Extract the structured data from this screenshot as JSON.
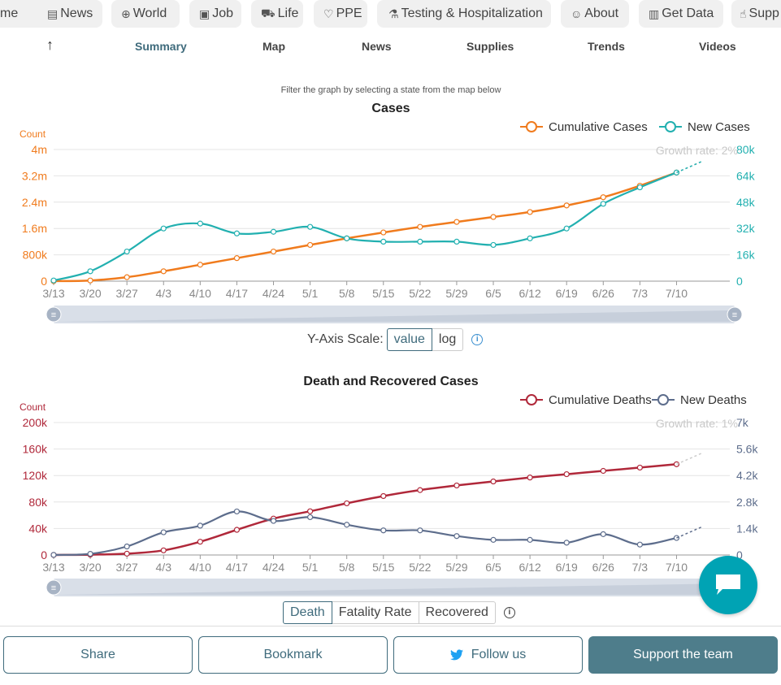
{
  "nav": {
    "pills": [
      {
        "label": "me",
        "icon": "home-icon"
      },
      {
        "label": "News",
        "icon": "newspaper-icon"
      },
      {
        "label": "World",
        "icon": "globe-icon"
      },
      {
        "label": "Job",
        "icon": "job-icon"
      },
      {
        "label": "Life",
        "icon": "cart-icon"
      },
      {
        "label": "PPE",
        "icon": "heart-icon"
      },
      {
        "label": "Testing & Hospitalization",
        "icon": "flask-icon"
      },
      {
        "label": "About",
        "icon": "users-icon"
      },
      {
        "label": "Get Data",
        "icon": "document-icon"
      },
      {
        "label": "Supp",
        "icon": "thumbs-up-icon"
      }
    ],
    "tabs": [
      "Summary",
      "Map",
      "News",
      "Supplies",
      "Trends",
      "Videos"
    ],
    "active_tab": "Summary"
  },
  "filter_hint": "Filter the graph by selecting a state from the map below",
  "scale_selector": {
    "label": "Y-Axis Scale:",
    "options": [
      "value",
      "log"
    ],
    "active": "value"
  },
  "death_selector": {
    "options": [
      "Death",
      "Fatality Rate",
      "Recovered"
    ],
    "active": "Death"
  },
  "buttons": {
    "share": "Share",
    "bookmark": "Bookmark",
    "follow": "Follow us",
    "support": "Support the team"
  },
  "colors": {
    "orange": "#f07b1d",
    "teal": "#22b0b0",
    "red": "#b0283a",
    "slate": "#5d6d8c",
    "accent": "#3f6b7c",
    "chat": "#00a3b4"
  },
  "chart_data": [
    {
      "type": "line",
      "title": "Cases",
      "ylabel_left": "Count",
      "x_ticks": [
        "3/13",
        "3/20",
        "3/27",
        "4/3",
        "4/10",
        "4/17",
        "4/24",
        "5/1",
        "5/8",
        "5/15",
        "5/22",
        "5/29",
        "6/5",
        "6/12",
        "6/19",
        "6/26",
        "7/3",
        "7/10"
      ],
      "y_left_ticks": [
        "0",
        "800k",
        "1.6m",
        "2.4m",
        "3.2m",
        "4m"
      ],
      "y_right_ticks": [
        "0",
        "16k",
        "32k",
        "48k",
        "64k",
        "80k"
      ],
      "ylim_left": [
        0,
        4000000
      ],
      "ylim_right": [
        0,
        80000
      ],
      "annotation": "Growth rate: 2%",
      "legend": [
        "Cumulative Cases",
        "New Cases"
      ],
      "series": [
        {
          "name": "Cumulative Cases",
          "axis": "left",
          "values": [
            2000,
            20000,
            120000,
            300000,
            500000,
            700000,
            900000,
            1100000,
            1300000,
            1480000,
            1650000,
            1800000,
            1950000,
            2100000,
            2300000,
            2550000,
            2900000,
            3300000
          ]
        },
        {
          "name": "New Cases",
          "axis": "right",
          "values": [
            400,
            6000,
            18000,
            32000,
            35000,
            29000,
            30000,
            33000,
            26000,
            24000,
            24000,
            24000,
            22000,
            26000,
            32000,
            47000,
            57000,
            66000
          ]
        }
      ]
    },
    {
      "type": "line",
      "title": "Death and Recovered Cases",
      "ylabel_left": "Count",
      "x_ticks": [
        "3/13",
        "3/20",
        "3/27",
        "4/3",
        "4/10",
        "4/17",
        "4/24",
        "5/1",
        "5/8",
        "5/15",
        "5/22",
        "5/29",
        "6/5",
        "6/12",
        "6/19",
        "6/26",
        "7/3",
        "7/10"
      ],
      "y_left_ticks": [
        "0",
        "40k",
        "80k",
        "120k",
        "160k",
        "200k"
      ],
      "y_right_ticks": [
        "0",
        "1.4k",
        "2.8k",
        "4.2k",
        "5.6k",
        "7k"
      ],
      "ylim_left": [
        0,
        200000
      ],
      "ylim_right": [
        0,
        7000
      ],
      "annotation": "Growth rate: 1%",
      "legend": [
        "Cumulative Deaths",
        "New Deaths"
      ],
      "series": [
        {
          "name": "Cumulative Deaths",
          "axis": "left",
          "values": [
            50,
            500,
            2000,
            7000,
            20000,
            38000,
            55000,
            66000,
            78000,
            89000,
            98000,
            105000,
            111000,
            117000,
            122000,
            127000,
            132000,
            137000
          ]
        },
        {
          "name": "New Deaths",
          "axis": "right",
          "values": [
            5,
            60,
            450,
            1200,
            1550,
            2300,
            1800,
            2000,
            1600,
            1300,
            1300,
            1000,
            800,
            800,
            650,
            1100,
            550,
            900
          ]
        }
      ]
    }
  ]
}
